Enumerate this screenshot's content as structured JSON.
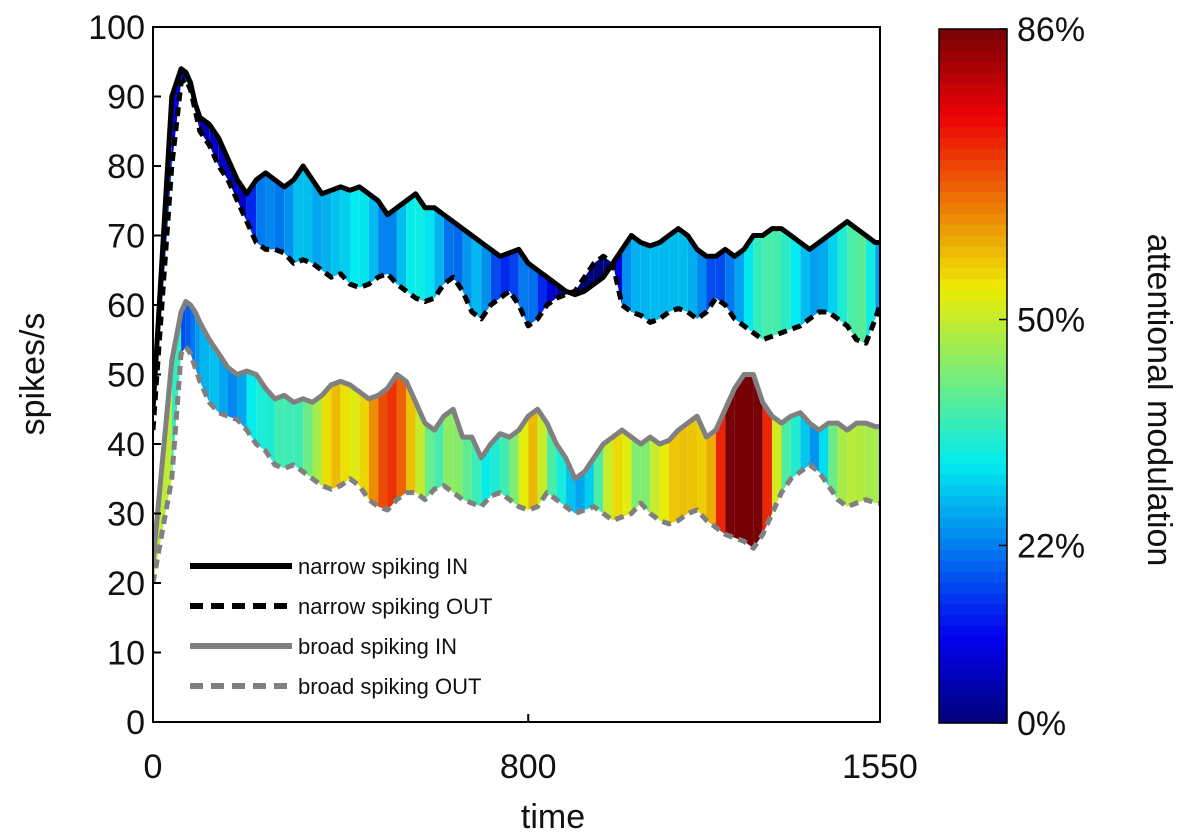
{
  "chart_data": {
    "type": "line",
    "xlabel": "time",
    "ylabel": "spikes/s",
    "xlim": [
      0,
      1550
    ],
    "ylim": [
      0,
      100
    ],
    "xticks": [
      0,
      800,
      1550
    ],
    "yticks": [
      0,
      10,
      20,
      30,
      40,
      50,
      60,
      70,
      80,
      90,
      100
    ],
    "x": [
      0,
      40,
      60,
      70,
      80,
      90,
      100,
      120,
      140,
      160,
      180,
      200,
      220,
      240,
      260,
      280,
      300,
      320,
      340,
      360,
      380,
      400,
      420,
      440,
      460,
      480,
      500,
      520,
      540,
      560,
      580,
      600,
      620,
      640,
      660,
      680,
      700,
      720,
      740,
      760,
      780,
      800,
      820,
      840,
      860,
      880,
      900,
      920,
      940,
      960,
      980,
      1000,
      1020,
      1040,
      1060,
      1080,
      1100,
      1120,
      1140,
      1160,
      1180,
      1200,
      1220,
      1240,
      1260,
      1280,
      1300,
      1320,
      1340,
      1360,
      1380,
      1400,
      1420,
      1440,
      1460,
      1480,
      1500,
      1520,
      1540,
      1550
    ],
    "series": [
      {
        "name": "narrow spiking IN",
        "color": "#000000",
        "dash": false,
        "values": [
          45,
          90,
          94,
          93.5,
          92,
          89,
          87,
          86,
          84,
          81,
          78,
          76,
          78,
          79,
          78,
          77,
          78,
          80,
          78,
          76,
          76.5,
          77,
          76.5,
          77,
          76,
          75,
          73,
          74,
          75,
          76,
          74,
          74,
          73,
          72,
          71,
          70,
          69,
          68,
          67,
          67.5,
          68,
          66,
          65,
          64,
          63,
          62,
          61.5,
          62,
          63,
          64,
          66,
          68,
          70,
          69,
          68.5,
          69,
          70,
          71,
          70,
          68,
          67,
          67,
          68,
          67,
          68,
          70,
          70,
          71,
          71,
          70,
          69,
          68,
          69,
          70,
          71,
          72,
          71,
          70,
          69,
          69
        ]
      },
      {
        "name": "narrow spiking OUT",
        "color": "#000000",
        "dash": true,
        "values": [
          42,
          80,
          92,
          92.5,
          91,
          88,
          85,
          83,
          80,
          78,
          75,
          72,
          69,
          68,
          68,
          67.5,
          66,
          66.5,
          66,
          65,
          64,
          64.5,
          63,
          62.5,
          63,
          64,
          64.5,
          63,
          62,
          61,
          60.5,
          61,
          63,
          64,
          62,
          59,
          58,
          60,
          61,
          62,
          60,
          57,
          58,
          60,
          61,
          61.5,
          62,
          64,
          66,
          67,
          66,
          60,
          59,
          58.5,
          57.5,
          58,
          59,
          59.5,
          59,
          58,
          59,
          61,
          60,
          58,
          57,
          56,
          55,
          55.5,
          56,
          56.5,
          57,
          58,
          59,
          59,
          58,
          57,
          55,
          54.5,
          58,
          60
        ]
      },
      {
        "name": "broad spiking IN",
        "color": "#808080",
        "dash": false,
        "values": [
          23,
          52,
          59,
          60.5,
          60,
          59,
          57.5,
          55,
          53,
          51,
          50,
          50.5,
          50,
          48,
          46.5,
          47,
          46,
          46.5,
          46,
          47,
          48.5,
          49,
          48.5,
          47.5,
          46.5,
          47,
          48,
          50,
          49,
          46,
          43,
          42,
          44,
          45,
          41,
          41,
          38,
          40,
          41.5,
          41,
          42,
          44,
          45,
          43,
          40,
          38,
          35,
          36,
          38,
          40,
          41,
          42,
          41,
          40,
          41,
          40,
          40.5,
          42,
          43,
          44,
          41,
          42,
          45,
          48,
          50,
          50,
          46,
          44,
          43,
          44,
          44.5,
          43,
          42,
          43,
          43,
          42,
          43,
          43,
          42.5,
          42.5
        ]
      },
      {
        "name": "broad spiking OUT",
        "color": "#808080",
        "dash": true,
        "values": [
          20,
          35,
          53,
          54,
          53,
          51,
          49,
          46,
          44.5,
          44,
          43.5,
          42,
          40,
          39,
          37,
          36.5,
          37,
          36,
          35,
          34,
          33.5,
          34,
          35,
          34,
          32,
          31,
          30.5,
          32,
          33,
          33,
          32,
          33.5,
          34,
          33,
          32,
          31.5,
          31,
          32.5,
          33,
          32,
          31,
          30.5,
          31,
          33,
          32,
          31,
          30,
          30.5,
          31,
          30,
          29,
          29.5,
          30,
          31.5,
          30,
          29,
          28.5,
          29,
          30,
          30.5,
          29,
          28,
          27,
          26.5,
          26,
          25,
          27,
          30,
          33,
          35,
          36,
          37,
          36,
          34,
          32,
          31,
          31.5,
          32,
          31.5,
          31.5
        ]
      }
    ],
    "colorbar": {
      "label": "attentional modulation",
      "tick_labels": [
        "0%",
        "22%",
        "50%",
        "86%"
      ],
      "tick_values": [
        0,
        22,
        50,
        86
      ],
      "range": [
        0,
        86
      ],
      "colormap": "jet"
    },
    "legend_position": "lower-left"
  }
}
